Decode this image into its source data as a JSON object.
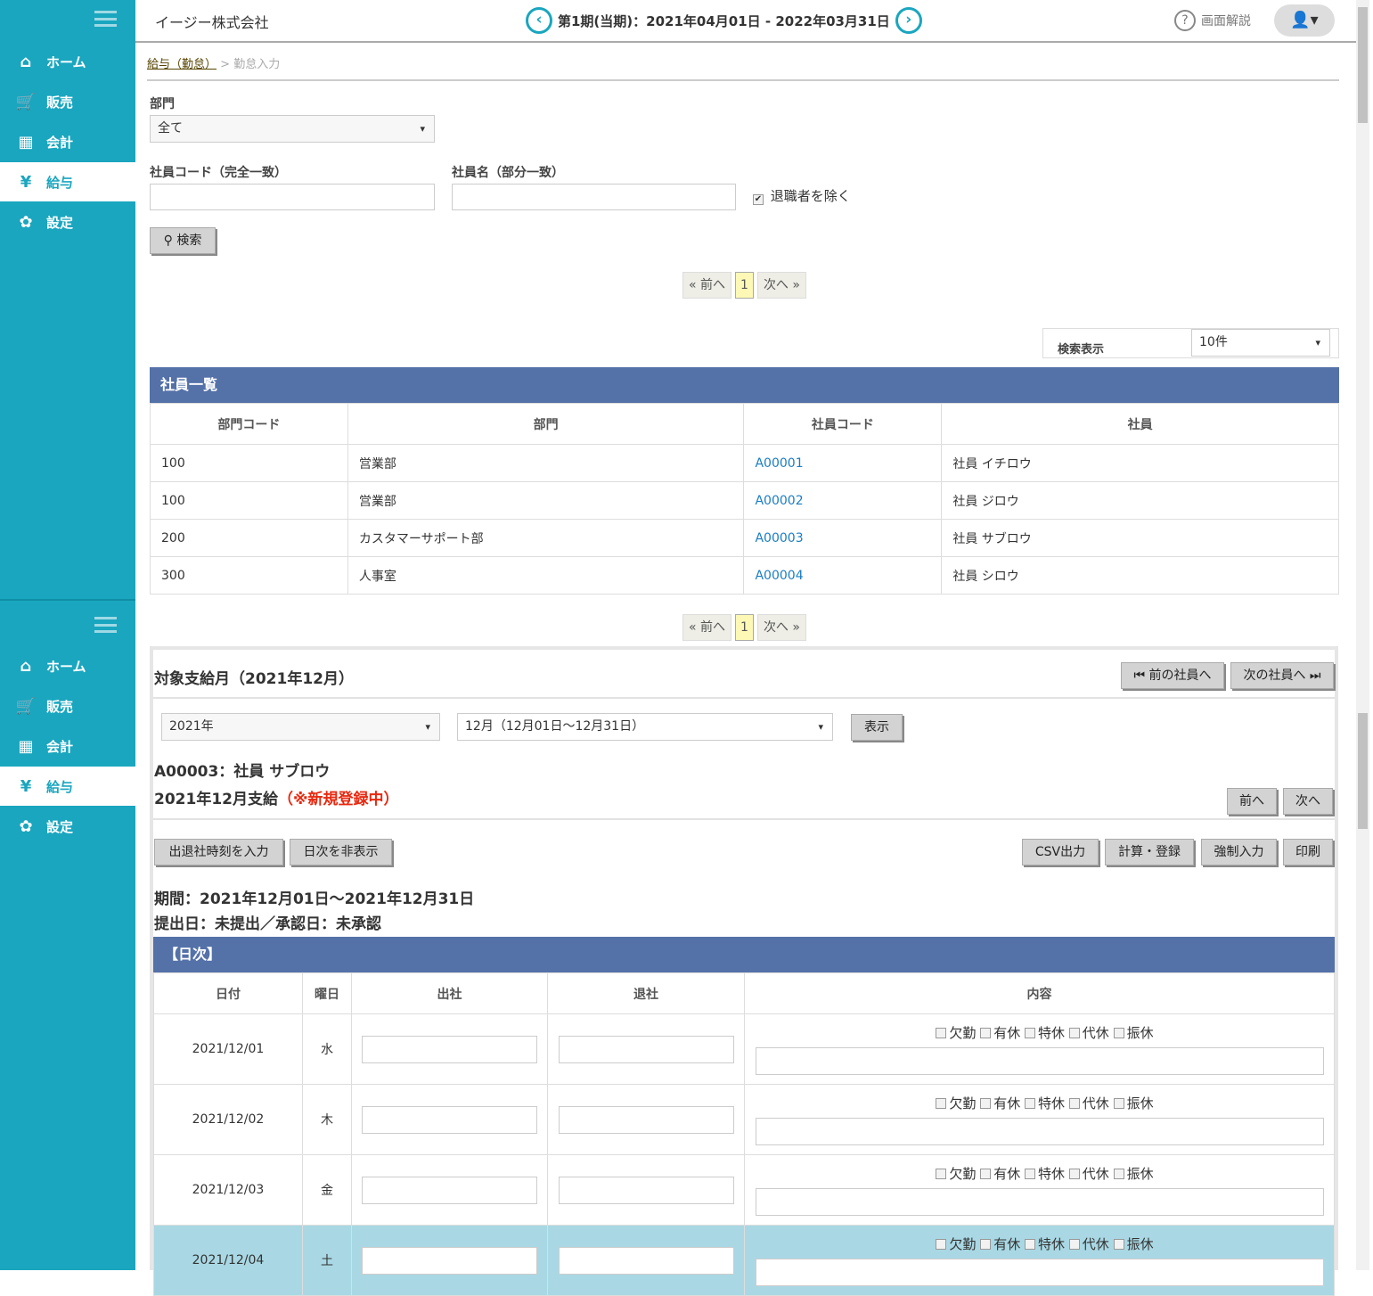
{
  "sidebar": {
    "items": [
      {
        "label": "ホーム",
        "icon": "home-icon"
      },
      {
        "label": "販売",
        "icon": "cart-icon"
      },
      {
        "label": "会計",
        "icon": "calculator-icon"
      },
      {
        "label": "給与",
        "icon": "money-bag-icon",
        "active": true
      },
      {
        "label": "設定",
        "icon": "gear-icon"
      }
    ]
  },
  "header": {
    "company": "イージー株式会社",
    "period": "第1期(当期)：2021年04月01日 - 2022年03月31日",
    "help": "画面解説"
  },
  "breadcrumb": {
    "parent": "給与（勤怠）",
    "sep": ">",
    "current": "勤怠入力"
  },
  "search": {
    "dept_label": "部門",
    "dept_value": "全て",
    "code_label": "社員コード（完全一致）",
    "name_label": "社員名（部分一致）",
    "exclude_label": "退職者を除く",
    "exclude_checked": true,
    "search_button": "検索"
  },
  "pagination": {
    "prev": "« 前へ",
    "page": "1",
    "next": "次へ »"
  },
  "display": {
    "label": "検索表示",
    "value": "10件"
  },
  "employees": {
    "title": "社員一覧",
    "headers": [
      "部門コード",
      "部門",
      "社員コード",
      "社員"
    ],
    "rows": [
      [
        "100",
        "営業部",
        "A00001",
        "社員 イチロウ"
      ],
      [
        "100",
        "営業部",
        "A00002",
        "社員 ジロウ"
      ],
      [
        "200",
        "カスタマーサポート部",
        "A00003",
        "社員 サブロウ"
      ],
      [
        "300",
        "人事室",
        "A00004",
        "社員 シロウ"
      ]
    ]
  },
  "detail": {
    "title": "対象支給月（2021年12月）",
    "prev_emp": "⏮ 前の社員へ",
    "next_emp": "次の社員へ ⏭",
    "year": "2021年",
    "month": "12月（12月01日～12月31日）",
    "show": "表示",
    "employee": "A00003：社員 サブロウ",
    "pay": "2021年12月支給",
    "status": "（※新規登録中）",
    "prev": "前へ",
    "next": "次へ",
    "btn_time": "出退社時刻を入力",
    "btn_hide": "日次を非表示",
    "btn_csv": "CSV出力",
    "btn_calc": "計算・登録",
    "btn_force": "強制入力",
    "btn_print": "印刷",
    "period": "期間：2021年12月01日～2021年12月31日",
    "submit": "提出日：未提出／承認日：未承認",
    "status_color": "#e8280f"
  },
  "daily": {
    "title": "【日次】",
    "headers": [
      "日付",
      "曜日",
      "出社",
      "退社",
      "内容"
    ],
    "checks": [
      "欠勤",
      "有休",
      "特休",
      "代休",
      "振休"
    ],
    "rows": [
      {
        "date": "2021/12/01",
        "dow": "水"
      },
      {
        "date": "2021/12/02",
        "dow": "木"
      },
      {
        "date": "2021/12/03",
        "dow": "金"
      },
      {
        "date": "2021/12/04",
        "dow": "土",
        "highlight": true
      }
    ]
  },
  "colors": {
    "sidebar": "#1aa6bf",
    "band": "#5471a8",
    "highlight": "#a9d8e4"
  }
}
